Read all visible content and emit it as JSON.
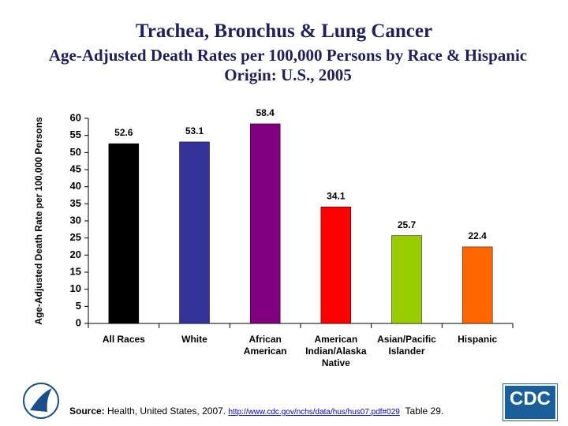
{
  "chart_data": {
    "type": "bar",
    "title": "Trachea, Bronchus & Lung Cancer",
    "subtitle": "Age-Adjusted Death Rates per 100,000 Persons by Race & Hispanic Origin: U.S., 2005",
    "y_label": "Age-Adjusted Death Rate per 100,000 Persons",
    "categories": [
      "All Races",
      "White",
      "African American",
      "American Indian/Alaska Native",
      "Asian/Pacific Islander",
      "Hispanic"
    ],
    "values": [
      52.6,
      53.1,
      58.4,
      34.1,
      25.7,
      22.4
    ],
    "colors": [
      "#000000",
      "#333399",
      "#800080",
      "#ff0000",
      "#99cc00",
      "#ff6600"
    ],
    "ylim": [
      0,
      60
    ],
    "yticks": [
      0,
      5,
      10,
      15,
      20,
      25,
      30,
      35,
      40,
      45,
      50,
      55,
      60
    ],
    "grid": false
  },
  "footer": {
    "source_label": "Source:",
    "source_text": "Health, United States, 2007.",
    "link": "http://www.cdc.gov/nchs/data/hus/hus07.pdf#029",
    "table": "Table 29.",
    "logo_text": "CDC"
  }
}
